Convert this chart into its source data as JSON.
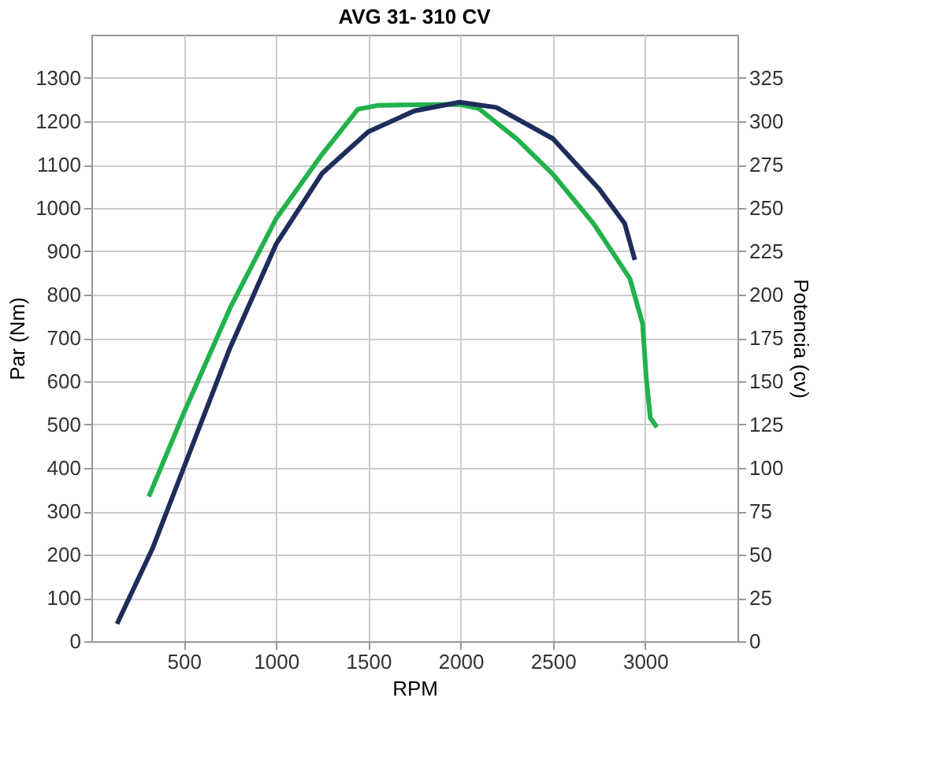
{
  "chart_data": {
    "type": "line",
    "title": "AVG 31- 310 CV",
    "xlabel": "RPM",
    "ylabel": "Par (Nm)",
    "y2label": "Potencia (cv)",
    "xlim": [
      0,
      3500
    ],
    "xticks": [
      500,
      1000,
      1500,
      2000,
      2500,
      3000
    ],
    "ylim": [
      0,
      1400
    ],
    "yticks": [
      0,
      100,
      200,
      300,
      400,
      500,
      600,
      700,
      800,
      900,
      1000,
      1100,
      1200,
      1300
    ],
    "y2lim": [
      0,
      350
    ],
    "y2ticks": [
      0,
      25,
      50,
      75,
      100,
      125,
      150,
      175,
      200,
      225,
      250,
      275,
      300,
      325
    ],
    "grid": true,
    "marker": "none",
    "line_style": "solid",
    "series": [
      {
        "color": "#22b24c",
        "x": [
          311,
          500,
          750,
          1000,
          1250,
          1444,
          1556,
          1994,
          2097,
          2306,
          2500,
          2722,
          2917,
          2986,
          3006,
          3028,
          3064
        ],
        "values": [
          334,
          526,
          768,
          975,
          1124,
          1228,
          1237,
          1239,
          1230,
          1159,
          1078,
          963,
          837,
          733,
          607,
          515,
          494
        ]
      },
      {
        "color": "#1f2d5c",
        "axis": "y2",
        "x": [
          139,
          333,
          500,
          750,
          1000,
          1250,
          1500,
          1750,
          1994,
          2194,
          2500,
          2750,
          2889,
          2944
        ],
        "values": [
          10,
          54,
          100,
          169,
          229,
          270,
          294,
          306,
          311,
          308,
          290,
          261,
          241,
          220
        ]
      }
    ]
  }
}
